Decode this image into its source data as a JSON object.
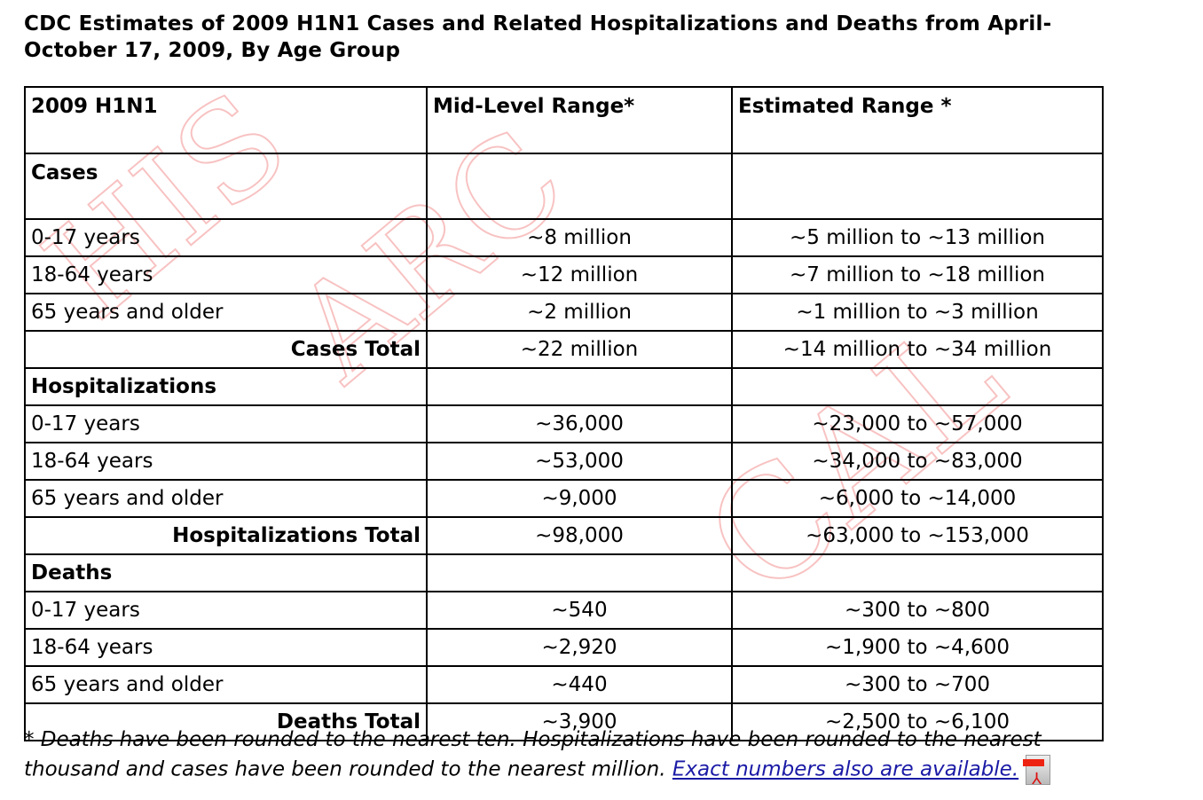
{
  "title": "CDC Estimates of 2009 H1N1 Cases and Related Hospitalizations and Deaths from April-October 17, 2009, By Age Group",
  "watermark": "HISTORICAL ARCHIVE",
  "table": {
    "headers": [
      "2009 H1N1",
      "Mid-Level Range*",
      "Estimated Range *"
    ],
    "sections": [
      {
        "label": "Cases",
        "rows": [
          {
            "group": "0-17 years",
            "mid": "~8 million",
            "range": "~5 million to ~13 million"
          },
          {
            "group": "18-64 years",
            "mid": "~12 million",
            "range": "~7 million to ~18 million"
          },
          {
            "group": "65 years and older",
            "mid": "~2 million",
            "range": "~1 million to ~3 million"
          }
        ],
        "total": {
          "label": "Cases Total",
          "mid": "~22 million",
          "range": "~14 million to ~34 million"
        }
      },
      {
        "label": "Hospitalizations",
        "rows": [
          {
            "group": "0-17 years",
            "mid": "~36,000",
            "range": "~23,000 to ~57,000"
          },
          {
            "group": "18-64 years",
            "mid": "~53,000",
            "range": "~34,000 to ~83,000"
          },
          {
            "group": "65 years and older",
            "mid": "~9,000",
            "range": "~6,000 to ~14,000"
          }
        ],
        "total": {
          "label": "Hospitalizations Total",
          "mid": "~98,000",
          "range": "~63,000 to ~153,000"
        }
      },
      {
        "label": "Deaths",
        "rows": [
          {
            "group": "0-17 years",
            "mid": "~540",
            "range": "~300 to ~800"
          },
          {
            "group": "18-64 years",
            "mid": "~2,920",
            "range": "~1,900 to ~4,600"
          },
          {
            "group": "65 years and older",
            "mid": "~440",
            "range": "~300 to ~700"
          }
        ],
        "total": {
          "label": "Deaths Total",
          "mid": "~3,900",
          "range": "~2,500 to ~6,100"
        }
      }
    ]
  },
  "footnote": {
    "text": "* Deaths have been rounded to the nearest ten. Hospitalizations have been rounded to the nearest thousand and cases have been rounded to the nearest million.",
    "link_label": "Exact numbers also are available.",
    "link_icon": "pdf-icon"
  }
}
